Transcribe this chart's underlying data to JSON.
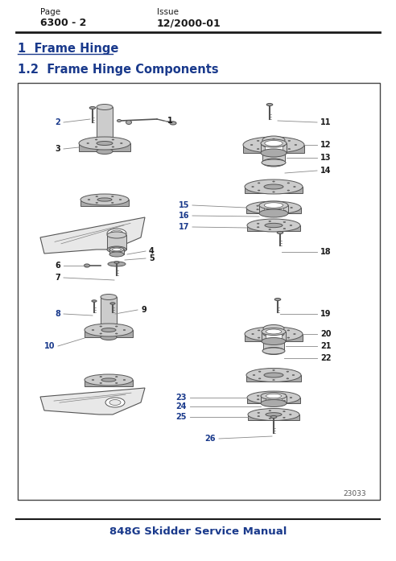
{
  "page_label": "Page",
  "page_value": "6300 - 2",
  "issue_label": "Issue",
  "issue_value": "12/2000-01",
  "section_title": "1  Frame Hinge",
  "subsection_title": "1.2  Frame Hinge Components",
  "footer_text": "848G Skidder Service Manual",
  "diagram_number": "23033",
  "bg_color": "#ffffff",
  "blue_color": "#1a3a8c",
  "black_color": "#1a1a1a",
  "part_numbers_blue": [
    "2",
    "8",
    "10",
    "15",
    "16",
    "17",
    "23",
    "24",
    "25",
    "26"
  ],
  "figsize": [
    4.92,
    6.97
  ],
  "dpi": 100
}
